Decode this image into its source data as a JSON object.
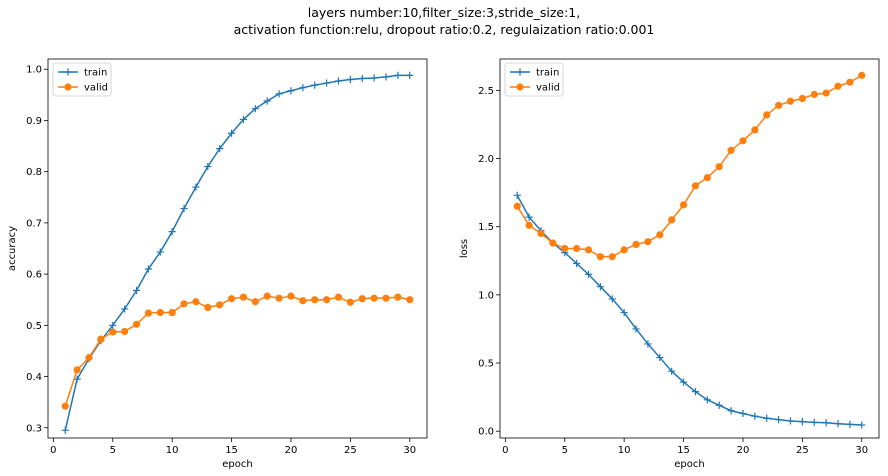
{
  "figure": {
    "title_lines": [
      "layers number:10,filter_size:3,stride_size:1,",
      "activation function:relu, dropout ratio:0.2, regulaization ratio:0.001"
    ]
  },
  "colors": {
    "train": "#1f77b4",
    "valid": "#ff7f0e"
  },
  "chart_data": [
    {
      "type": "line",
      "title": "",
      "xlabel": "epoch",
      "ylabel": "accuracy",
      "xlim": [
        -0.45,
        31.45
      ],
      "ylim": [
        0.28,
        1.02
      ],
      "xticks": [
        0,
        5,
        10,
        15,
        20,
        25,
        30
      ],
      "yticks": [
        0.3,
        0.4,
        0.5,
        0.6,
        0.7,
        0.8,
        0.9,
        1.0
      ],
      "ytick_labels": [
        "0.3",
        "0.4",
        "0.5",
        "0.6",
        "0.7",
        "0.8",
        "0.9",
        "1.0"
      ],
      "legend": "top-left",
      "grid": false,
      "x": [
        1,
        2,
        3,
        4,
        5,
        6,
        7,
        8,
        9,
        10,
        11,
        12,
        13,
        14,
        15,
        16,
        17,
        18,
        19,
        20,
        21,
        22,
        23,
        24,
        25,
        26,
        27,
        28,
        29,
        30
      ],
      "series": [
        {
          "name": "train",
          "marker": "plus",
          "values": [
            0.295,
            0.395,
            0.435,
            0.47,
            0.5,
            0.532,
            0.568,
            0.61,
            0.643,
            0.683,
            0.728,
            0.77,
            0.81,
            0.845,
            0.875,
            0.902,
            0.923,
            0.938,
            0.952,
            0.958,
            0.964,
            0.969,
            0.973,
            0.977,
            0.98,
            0.982,
            0.983,
            0.985,
            0.988,
            0.988
          ]
        },
        {
          "name": "valid",
          "marker": "circle",
          "values": [
            0.342,
            0.413,
            0.437,
            0.473,
            0.487,
            0.488,
            0.502,
            0.524,
            0.525,
            0.525,
            0.542,
            0.546,
            0.535,
            0.54,
            0.552,
            0.555,
            0.546,
            0.557,
            0.553,
            0.557,
            0.548,
            0.55,
            0.55,
            0.555,
            0.545,
            0.552,
            0.553,
            0.553,
            0.555,
            0.55
          ]
        }
      ]
    },
    {
      "type": "line",
      "title": "",
      "xlabel": "epoch",
      "ylabel": "loss",
      "xlim": [
        -0.45,
        31.45
      ],
      "ylim": [
        -0.05,
        2.73
      ],
      "xticks": [
        0,
        5,
        10,
        15,
        20,
        25,
        30
      ],
      "yticks": [
        0.0,
        0.5,
        1.0,
        1.5,
        2.0,
        2.5
      ],
      "ytick_labels": [
        "0.0",
        "0.5",
        "1.0",
        "1.5",
        "2.0",
        "2.5"
      ],
      "legend": "top-left",
      "grid": false,
      "x": [
        1,
        2,
        3,
        4,
        5,
        6,
        7,
        8,
        9,
        10,
        11,
        12,
        13,
        14,
        15,
        16,
        17,
        18,
        19,
        20,
        21,
        22,
        23,
        24,
        25,
        26,
        27,
        28,
        29,
        30
      ],
      "series": [
        {
          "name": "train",
          "marker": "plus",
          "values": [
            1.73,
            1.57,
            1.47,
            1.38,
            1.31,
            1.23,
            1.15,
            1.06,
            0.97,
            0.87,
            0.75,
            0.64,
            0.54,
            0.44,
            0.36,
            0.29,
            0.23,
            0.19,
            0.15,
            0.13,
            0.11,
            0.095,
            0.085,
            0.075,
            0.07,
            0.065,
            0.062,
            0.055,
            0.05,
            0.045
          ]
        },
        {
          "name": "valid",
          "marker": "circle",
          "values": [
            1.65,
            1.51,
            1.45,
            1.38,
            1.34,
            1.34,
            1.33,
            1.28,
            1.28,
            1.33,
            1.37,
            1.39,
            1.44,
            1.55,
            1.66,
            1.8,
            1.86,
            1.94,
            2.06,
            2.13,
            2.21,
            2.32,
            2.39,
            2.42,
            2.44,
            2.47,
            2.48,
            2.53,
            2.56,
            2.61
          ]
        }
      ]
    }
  ]
}
